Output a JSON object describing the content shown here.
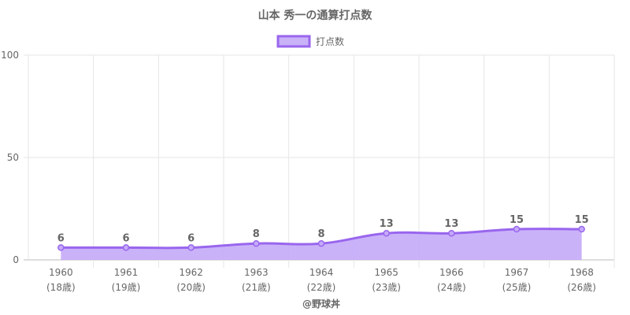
{
  "chart_data": {
    "type": "area",
    "title": "山本 秀一の通算打点数",
    "x": [
      "1960",
      "1961",
      "1962",
      "1963",
      "1964",
      "1965",
      "1966",
      "1967",
      "1968"
    ],
    "x_sublabels": [
      "(18歳)",
      "(19歳)",
      "(20歳)",
      "(21歳)",
      "(22歳)",
      "(23歳)",
      "(24歳)",
      "(25歳)",
      "(26歳)"
    ],
    "series": [
      {
        "name": "打点数",
        "values": [
          6,
          6,
          6,
          8,
          8,
          13,
          13,
          15,
          15
        ]
      }
    ],
    "ylim": [
      0,
      100
    ],
    "yticks": [
      0,
      50,
      100
    ],
    "grid": true,
    "legend_position": "top",
    "colors": {
      "line": "#9966ee",
      "fill": "#c4aaf8",
      "legend_fill": "#c9b2f7"
    },
    "credit": "@野球丼"
  }
}
